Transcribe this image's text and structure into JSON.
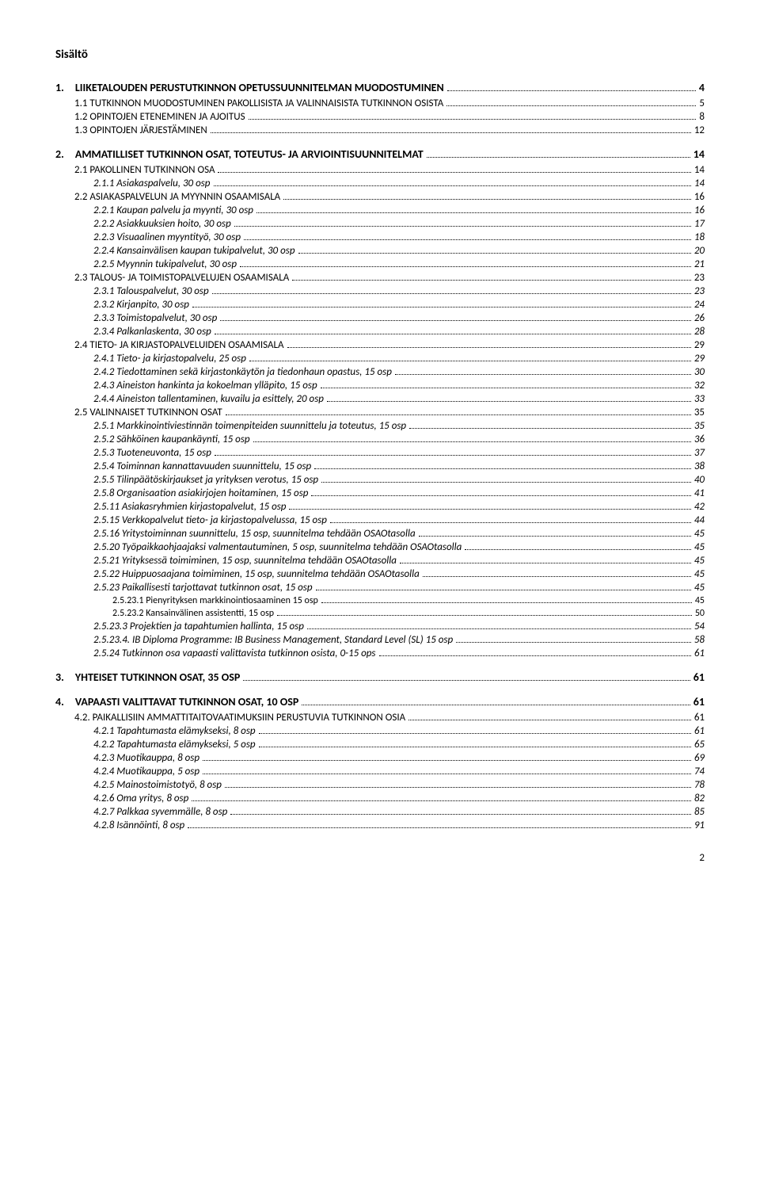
{
  "doc_title": "Sisältö",
  "page_number": "2",
  "toc": [
    {
      "level": 0,
      "bold": true,
      "label": "1. LIIKETALOUDEN PERUSTUTKINNON OPETUSSUUNNITELMAN MUODOSTUMINEN",
      "page": "4"
    },
    {
      "level": 1,
      "label": "1.1 TUTKINNON MUODOSTUMINEN PAKOLLISISTA JA VALINNAISISTA TUTKINNON OSISTA",
      "page": "5"
    },
    {
      "level": 1,
      "label": "1.2 OPINTOJEN ETENEMINEN JA AJOITUS",
      "page": "8"
    },
    {
      "level": 1,
      "label": "1.3 OPINTOJEN JÄRJESTÄMINEN",
      "page": "12"
    },
    {
      "level": 0,
      "bold": true,
      "label": "2. AMMATILLISET TUTKINNON OSAT, TOTEUTUS- JA ARVIOINTISUUNNITELMAT",
      "page": "14"
    },
    {
      "level": 1,
      "label": "2.1 PAKOLLINEN TUTKINNON OSA",
      "page": "14"
    },
    {
      "level": 2,
      "italic": true,
      "label": "2.1.1 Asiakaspalvelu, 30 osp",
      "page": "14"
    },
    {
      "level": 1,
      "label": "2.2 ASIAKASPALVELUN JA MYYNNIN OSAAMISALA",
      "page": "16"
    },
    {
      "level": 2,
      "italic": true,
      "label": "2.2.1 Kaupan palvelu ja myynti, 30 osp",
      "page": "16"
    },
    {
      "level": 2,
      "italic": true,
      "label": "2.2.2 Asiakkuuksien hoito, 30 osp",
      "page": "17"
    },
    {
      "level": 2,
      "italic": true,
      "label": "2.2.3 Visuaalinen myyntityö, 30 osp",
      "page": "18"
    },
    {
      "level": 2,
      "italic": true,
      "label": "2.2.4 Kansainvälisen kaupan tukipalvelut, 30 osp",
      "page": "20"
    },
    {
      "level": 2,
      "italic": true,
      "label": "2.2.5 Myynnin tukipalvelut, 30 osp",
      "page": "21"
    },
    {
      "level": 1,
      "label": "2.3 TALOUS- JA TOIMISTOPALVELUJEN OSAAMISALA",
      "page": "23"
    },
    {
      "level": 2,
      "italic": true,
      "label": "2.3.1 Talouspalvelut, 30 osp",
      "page": "23"
    },
    {
      "level": 2,
      "italic": true,
      "label": "2.3.2 Kirjanpito, 30 osp",
      "page": "24"
    },
    {
      "level": 2,
      "italic": true,
      "label": "2.3.3 Toimistopalvelut, 30 osp",
      "page": "26"
    },
    {
      "level": 2,
      "italic": true,
      "label": "2.3.4 Palkanlaskenta, 30 osp",
      "page": "28"
    },
    {
      "level": 1,
      "label": "2.4 TIETO- JA KIRJASTOPALVELUIDEN OSAAMISALA",
      "page": "29"
    },
    {
      "level": 2,
      "italic": true,
      "label": "2.4.1 Tieto- ja kirjastopalvelu, 25 osp",
      "page": "29"
    },
    {
      "level": 2,
      "italic": true,
      "label": "2.4.2 Tiedottaminen sekä kirjastonkäytön ja tiedonhaun opastus, 15 osp",
      "page": "30"
    },
    {
      "level": 2,
      "italic": true,
      "label": "2.4.3 Aineiston hankinta ja kokoelman ylläpito, 15 osp",
      "page": "32"
    },
    {
      "level": 2,
      "italic": true,
      "label": "2.4.4 Aineiston tallentaminen, kuvailu ja esittely, 20 osp",
      "page": "33"
    },
    {
      "level": 1,
      "label": "2.5 VALINNAISET TUTKINNON OSAT",
      "page": "35"
    },
    {
      "level": 2,
      "italic": true,
      "label": "2.5.1 Markkinointiviestinnän toimenpiteiden suunnittelu ja toteutus, 15 osp",
      "page": "35"
    },
    {
      "level": 2,
      "italic": true,
      "label": "2.5.2 Sähköinen kaupankäynti, 15 osp",
      "page": "36"
    },
    {
      "level": 2,
      "italic": true,
      "label": "2.5.3 Tuoteneuvonta, 15 osp",
      "page": "37"
    },
    {
      "level": 2,
      "italic": true,
      "label": "2.5.4 Toiminnan kannattavuuden suunnittelu, 15 osp",
      "page": "38"
    },
    {
      "level": 2,
      "italic": true,
      "label": "2.5.5 Tilinpäätöskirjaukset ja yrityksen verotus, 15 osp",
      "page": "40"
    },
    {
      "level": 2,
      "italic": true,
      "label": "2.5.8 Organisaation asiakirjojen hoitaminen, 15 osp",
      "page": "41"
    },
    {
      "level": 2,
      "italic": true,
      "label": "2.5.11 Asiakasryhmien kirjastopalvelut, 15 osp",
      "page": "42"
    },
    {
      "level": 2,
      "italic": true,
      "label": "2.5.15 Verkkopalvelut tieto- ja kirjastopalvelussa, 15 osp",
      "page": "44"
    },
    {
      "level": 2,
      "italic": true,
      "label": "2.5.16 Yritystoiminnan suunnittelu, 15 osp, suunnitelma tehdään OSAOtasolla",
      "page": "45"
    },
    {
      "level": 2,
      "italic": true,
      "label": "2.5.20 Työpaikkaohjaajaksi valmentautuminen, 5 osp, suunnitelma tehdään OSAOtasolla",
      "page": "45"
    },
    {
      "level": 2,
      "italic": true,
      "label": "2.5.21 Yrityksessä toimiminen, 15 osp, suunnitelma tehdään OSAOtasolla",
      "page": "45"
    },
    {
      "level": 2,
      "italic": true,
      "label": "2.5.22 Huippuosaajana toimiminen, 15 osp, suunnitelma tehdään OSAOtasolla",
      "page": "45"
    },
    {
      "level": 2,
      "italic": true,
      "label": "2.5.23 Paikallisesti tarjottavat tutkinnon osat, 15 osp",
      "page": "45"
    },
    {
      "level": 3,
      "label": "2.5.23.1 Pienyrityksen markkinointiosaaminen 15 osp",
      "page": "45"
    },
    {
      "level": 3,
      "label": "2.5.23.2 Kansainvälinen assistentti, 15 osp",
      "page": "50"
    },
    {
      "level": 2,
      "italic": true,
      "label": "2.5.23.3 Projektien ja tapahtumien hallinta, 15 osp",
      "page": "54"
    },
    {
      "level": 2,
      "italic": true,
      "label": "2.5.23.4. IB Diploma Programme: IB Business Management, Standard Level (SL) 15 osp",
      "page": "58"
    },
    {
      "level": 2,
      "italic": true,
      "label": "2.5.24 Tutkinnon osa vapaasti valittavista tutkinnon osista, 0-15 ops",
      "page": "61"
    },
    {
      "level": 0,
      "bold": true,
      "label": "3. YHTEISET TUTKINNON OSAT, 35 OSP",
      "page": "61"
    },
    {
      "level": 0,
      "bold": true,
      "label": "4. VAPAASTI VALITTAVAT TUTKINNON OSAT, 10 OSP",
      "page": "61"
    },
    {
      "level": 1,
      "label": "4.2. PAIKALLISIIN AMMATTITAITOVAATIMUKSIIN PERUSTUVIA TUTKINNON OSIA",
      "page": "61"
    },
    {
      "level": 2,
      "italic": true,
      "label": "4.2.1 Tapahtumasta elämykseksi, 8 osp",
      "page": "61"
    },
    {
      "level": 2,
      "italic": true,
      "label": "4.2.2 Tapahtumasta elämykseksi, 5 osp",
      "page": "65"
    },
    {
      "level": 2,
      "italic": true,
      "label": "4.2.3 Muotikauppa, 8 osp",
      "page": "69"
    },
    {
      "level": 2,
      "italic": true,
      "label": "4.2.4 Muotikauppa, 5 osp",
      "page": "74"
    },
    {
      "level": 2,
      "italic": true,
      "label": "4.2.5 Mainostoimistotyö, 8 osp",
      "page": "78"
    },
    {
      "level": 2,
      "italic": true,
      "label": "4.2.6 Oma yritys, 8 osp",
      "page": "82"
    },
    {
      "level": 2,
      "italic": true,
      "label": "4.2.7 Palkkaa syvemmälle, 8 osp",
      "page": "85"
    },
    {
      "level": 2,
      "italic": true,
      "label": "4.2.8 Isännöinti, 8 osp",
      "page": "91"
    }
  ]
}
